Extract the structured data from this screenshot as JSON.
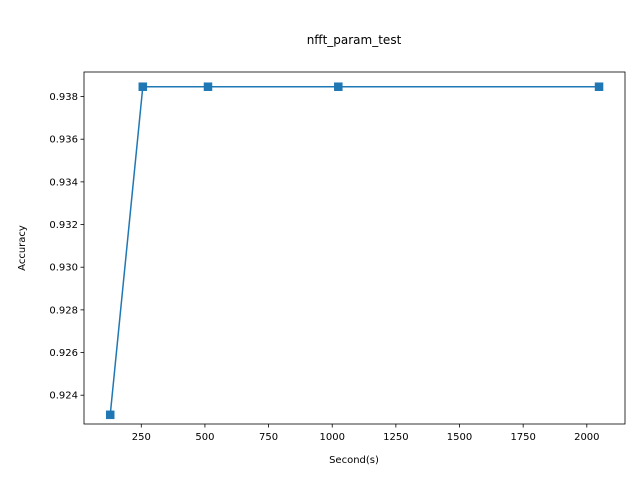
{
  "chart_data": {
    "type": "line",
    "title": "nfft_param_test",
    "xlabel": "Second(s)",
    "ylabel": "Accuracy",
    "xlim": [
      25,
      2150
    ],
    "ylim": [
      0.92265,
      0.93915
    ],
    "xticks": [
      250,
      500,
      750,
      1000,
      1250,
      1500,
      1750,
      2000
    ],
    "yticks": [
      0.924,
      0.926,
      0.928,
      0.93,
      0.932,
      0.934,
      0.936,
      0.938
    ],
    "x": [
      128,
      256,
      512,
      1024,
      2048
    ],
    "series": [
      {
        "values": [
          0.92308,
          0.93846,
          0.93846,
          0.93846,
          0.93846
        ],
        "color": "#1f77b4",
        "marker": "square"
      }
    ],
    "grid": false,
    "legend": "none"
  }
}
